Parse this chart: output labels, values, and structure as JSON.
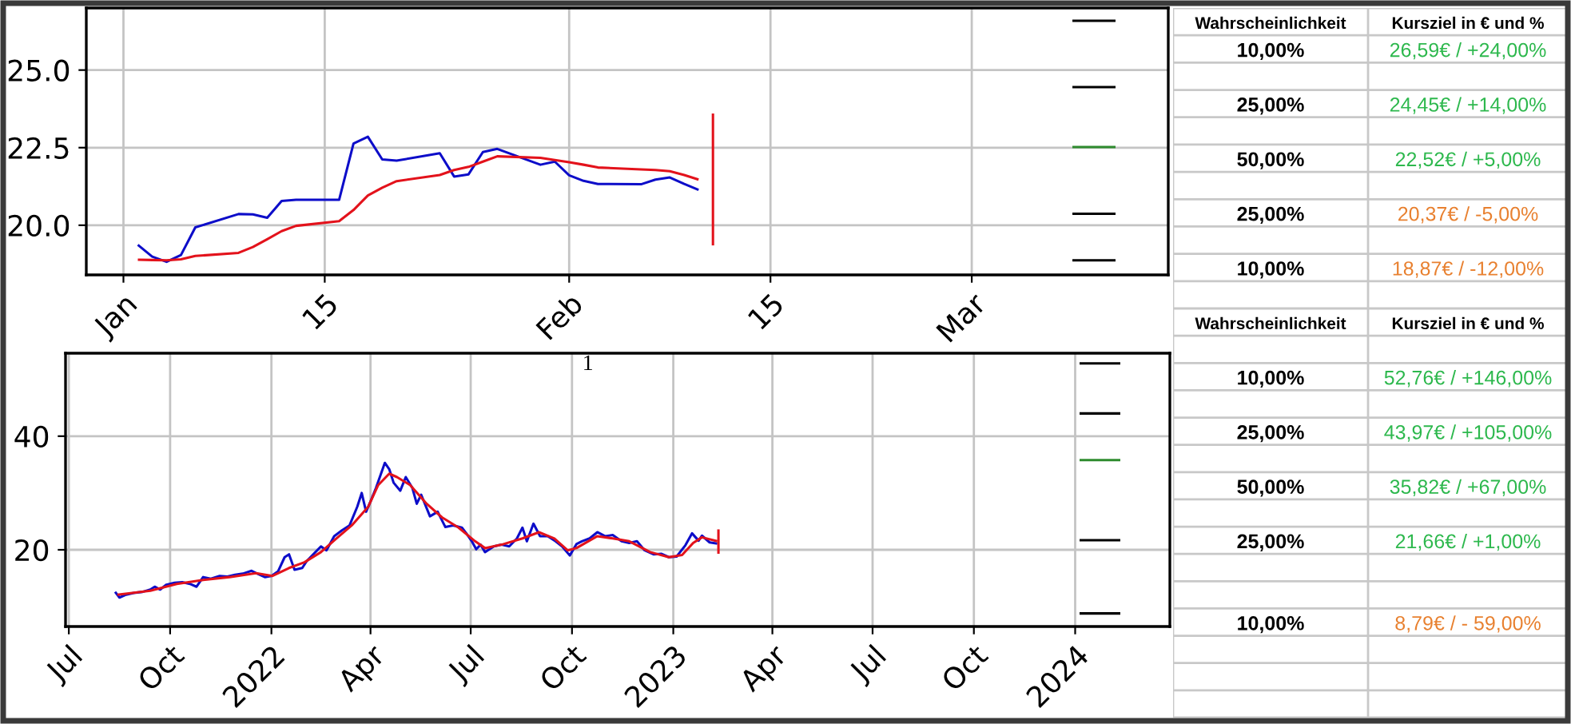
{
  "chart_data": [
    {
      "type": "line",
      "xlim": [
        "2022-12-29T10:00",
        "2023-03-14T16:00"
      ],
      "ylim": [
        18.4,
        27.0
      ],
      "xticks": [
        {
          "value": "2023-01-01",
          "label": "Jan"
        },
        {
          "value": "2023-01-15",
          "label": "15"
        },
        {
          "value": "2023-02-01",
          "label": "Feb"
        },
        {
          "value": "2023-02-15",
          "label": "15"
        },
        {
          "value": "2023-03-01",
          "label": "Mar"
        }
      ],
      "yticks": [
        {
          "value": 20,
          "label": "20.0"
        },
        {
          "value": 22.5,
          "label": "22.5"
        },
        {
          "value": 25,
          "label": "25.0"
        }
      ],
      "grid": true,
      "x": [
        "2023-01-02",
        "2023-01-03",
        "2023-01-04",
        "2023-01-05",
        "2023-01-06",
        "2023-01-09",
        "2023-01-10",
        "2023-01-11",
        "2023-01-12",
        "2023-01-13",
        "2023-01-16",
        "2023-01-17",
        "2023-01-18",
        "2023-01-19",
        "2023-01-20",
        "2023-01-23",
        "2023-01-24",
        "2023-01-25",
        "2023-01-26",
        "2023-01-27",
        "2023-01-30",
        "2023-01-31",
        "2023-02-01",
        "2023-02-02",
        "2023-02-03",
        "2023-02-06",
        "2023-02-07",
        "2023-02-08",
        "2023-02-09",
        "2023-02-10"
      ],
      "series": [
        {
          "color": "#0d0dc9",
          "values": [
            19.37,
            18.99,
            18.82,
            19.04,
            19.93,
            20.36,
            20.35,
            20.24,
            20.78,
            20.82,
            20.82,
            22.63,
            22.85,
            22.12,
            22.08,
            22.32,
            21.57,
            21.64,
            22.36,
            22.46,
            21.95,
            22.05,
            21.61,
            21.43,
            21.33,
            21.32,
            21.47,
            21.54,
            21.33,
            21.14
          ]
        },
        {
          "color": "#e3121b",
          "values": [
            18.89,
            18.88,
            18.87,
            18.9,
            19.01,
            19.11,
            19.3,
            19.55,
            19.81,
            19.98,
            20.13,
            20.49,
            20.96,
            21.21,
            21.42,
            21.62,
            21.78,
            21.88,
            22.05,
            22.22,
            22.17,
            22.1,
            22.03,
            21.95,
            21.86,
            21.8,
            21.78,
            21.74,
            21.62,
            21.47
          ]
        },
        {
          "color": "#e3121b",
          "x": [
            "2023-02-11",
            "2023-02-11"
          ],
          "values": [
            23.6,
            19.35
          ]
        },
        {
          "color": "#000000",
          "x": [
            "2023-03-08",
            "2023-03-11"
          ],
          "values": [
            26.59,
            26.59
          ]
        },
        {
          "color": "#000000",
          "x": [
            "2023-03-08",
            "2023-03-11"
          ],
          "values": [
            24.45,
            24.45
          ]
        },
        {
          "color": "#2e8b2e",
          "x": [
            "2023-03-08",
            "2023-03-11"
          ],
          "values": [
            22.52,
            22.52
          ]
        },
        {
          "color": "#000000",
          "x": [
            "2023-03-08",
            "2023-03-11"
          ],
          "values": [
            20.37,
            20.37
          ]
        },
        {
          "color": "#000000",
          "x": [
            "2023-03-08",
            "2023-03-11"
          ],
          "values": [
            18.87,
            18.87
          ]
        }
      ]
    },
    {
      "type": "line",
      "xlim": [
        "2021-06-28",
        "2024-03-27"
      ],
      "ylim": [
        6.5,
        54.6
      ],
      "xticks": [
        {
          "value": "2021-07-01",
          "label": "Jul"
        },
        {
          "value": "2021-10-01",
          "label": "Oct"
        },
        {
          "value": "2022-01-01",
          "label": "2022"
        },
        {
          "value": "2022-04-01",
          "label": "Apr"
        },
        {
          "value": "2022-07-01",
          "label": "Jul"
        },
        {
          "value": "2022-10-01",
          "label": "Oct"
        },
        {
          "value": "2023-01-01",
          "label": "2023"
        },
        {
          "value": "2023-04-01",
          "label": "Apr"
        },
        {
          "value": "2023-07-01",
          "label": "Jul"
        },
        {
          "value": "2023-10-01",
          "label": "Oct"
        },
        {
          "value": "2024-01-01",
          "label": "2024"
        }
      ],
      "yticks": [
        20,
        40
      ],
      "grid": true,
      "annotations": [
        "1"
      ],
      "series": [
        {
          "color": "#0d0dc9",
          "x": [
            "2021-08-12",
            "2021-08-16",
            "2021-08-22",
            "2021-08-29",
            "2021-09-06",
            "2021-09-13",
            "2021-09-17",
            "2021-09-22",
            "2021-09-27",
            "2021-10-05",
            "2021-10-12",
            "2021-10-19",
            "2021-10-25",
            "2021-10-31",
            "2021-11-07",
            "2021-11-15",
            "2021-11-22",
            "2021-11-29",
            "2021-12-06",
            "2021-12-14",
            "2021-12-18",
            "2021-12-26",
            "2022-01-01",
            "2022-01-07",
            "2022-01-13",
            "2022-01-17",
            "2022-01-22",
            "2022-01-29",
            "2022-02-02",
            "2022-02-10",
            "2022-02-15",
            "2022-02-20",
            "2022-02-27",
            "2022-03-06",
            "2022-03-13",
            "2022-03-20",
            "2022-03-24",
            "2022-03-28",
            "2022-04-01",
            "2022-04-06",
            "2022-04-14",
            "2022-04-18",
            "2022-04-22",
            "2022-04-28",
            "2022-05-03",
            "2022-05-09",
            "2022-05-13",
            "2022-05-17",
            "2022-05-25",
            "2022-06-01",
            "2022-06-08",
            "2022-06-15",
            "2022-06-23",
            "2022-06-27",
            "2022-07-02",
            "2022-07-06",
            "2022-07-10",
            "2022-07-14",
            "2022-07-22",
            "2022-07-29",
            "2022-08-05",
            "2022-08-12",
            "2022-08-17",
            "2022-08-21",
            "2022-08-27",
            "2022-09-02",
            "2022-09-09",
            "2022-09-16",
            "2022-09-22",
            "2022-09-29",
            "2022-10-05",
            "2022-10-10",
            "2022-10-17",
            "2022-10-24",
            "2022-10-31",
            "2022-11-07",
            "2022-11-15",
            "2022-11-22",
            "2022-11-29",
            "2022-12-06",
            "2022-12-14",
            "2022-12-21",
            "2022-12-28",
            "2023-01-04",
            "2023-01-12",
            "2023-01-18",
            "2023-01-24",
            "2023-01-27",
            "2023-02-03",
            "2023-02-10"
          ],
          "values": [
            12.6,
            11.6,
            12.1,
            12.4,
            12.6,
            13.0,
            13.5,
            13.0,
            13.8,
            14.2,
            14.3,
            14.0,
            13.5,
            15.2,
            14.9,
            15.4,
            15.3,
            15.6,
            15.8,
            16.3,
            15.9,
            15.2,
            15.4,
            16.2,
            18.7,
            19.2,
            16.5,
            16.8,
            18.0,
            19.6,
            20.6,
            19.9,
            22.4,
            23.4,
            24.3,
            27.6,
            30.0,
            26.7,
            28.5,
            30.9,
            35.3,
            34.2,
            31.8,
            30.4,
            32.8,
            30.9,
            28.1,
            29.7,
            25.9,
            26.7,
            24.0,
            24.3,
            23.9,
            22.9,
            21.5,
            20.1,
            20.9,
            19.6,
            20.6,
            20.9,
            20.6,
            22.0,
            23.9,
            21.5,
            24.6,
            22.4,
            22.4,
            21.5,
            20.6,
            19.0,
            21.0,
            21.5,
            22.0,
            23.1,
            22.4,
            22.6,
            21.5,
            21.2,
            21.5,
            19.9,
            19.2,
            19.3,
            18.7,
            18.8,
            20.8,
            22.9,
            21.6,
            22.5,
            21.3,
            21.1
          ]
        },
        {
          "color": "#e3121b",
          "x": [
            "2021-08-14",
            "2021-09-13",
            "2021-10-07",
            "2021-10-31",
            "2021-11-24",
            "2021-12-18",
            "2022-01-02",
            "2022-01-17",
            "2022-01-31",
            "2022-02-15",
            "2022-03-01",
            "2022-03-15",
            "2022-03-30",
            "2022-04-08",
            "2022-04-18",
            "2022-04-25",
            "2022-05-07",
            "2022-05-22",
            "2022-06-05",
            "2022-06-20",
            "2022-07-05",
            "2022-07-14",
            "2022-07-29",
            "2022-08-17",
            "2022-09-01",
            "2022-09-15",
            "2022-09-27",
            "2022-10-05",
            "2022-10-24",
            "2022-11-07",
            "2022-11-22",
            "2022-12-11",
            "2022-12-28",
            "2023-01-09",
            "2023-01-19",
            "2023-01-27",
            "2023-02-10"
          ],
          "values": [
            12.1,
            12.8,
            14.0,
            14.7,
            15.2,
            15.9,
            15.4,
            16.8,
            17.8,
            19.6,
            22.0,
            24.3,
            27.6,
            31.4,
            33.4,
            32.8,
            31.4,
            28.1,
            25.7,
            23.9,
            21.5,
            20.3,
            20.9,
            22.0,
            23.1,
            22.0,
            19.9,
            20.3,
            22.4,
            22.0,
            21.5,
            19.6,
            18.7,
            19.1,
            21.2,
            22.2,
            21.5
          ]
        },
        {
          "color": "#e3121b",
          "x": [
            "2023-02-11",
            "2023-02-11"
          ],
          "values": [
            23.6,
            19.3
          ]
        },
        {
          "color": "#000000",
          "x": [
            "2024-01-05",
            "2024-02-11"
          ],
          "values": [
            52.8,
            52.8
          ]
        },
        {
          "color": "#000000",
          "x": [
            "2024-01-05",
            "2024-02-11"
          ],
          "values": [
            44.0,
            44.0
          ]
        },
        {
          "color": "#2e8b2e",
          "x": [
            "2024-01-05",
            "2024-02-11"
          ],
          "values": [
            35.8,
            35.8
          ]
        },
        {
          "color": "#000000",
          "x": [
            "2024-01-05",
            "2024-02-11"
          ],
          "values": [
            21.7,
            21.7
          ]
        },
        {
          "color": "#000000",
          "x": [
            "2024-01-05",
            "2024-02-11"
          ],
          "values": [
            8.8,
            8.8
          ]
        }
      ]
    },
    {
      "type": "other",
      "annotations": [
        "Wahrscheinlichkeit",
        "Kursziel in € und %"
      ],
      "categories": [
        "10,00%",
        "25,00%",
        "50,00%",
        "25,00%",
        "10,00%"
      ],
      "value_labels": [
        "26,59€ / +24,00%",
        "24,45€ / +14,00%",
        "22,52€ / +5,00%",
        "20,37€ / -5,00%",
        "18,87€ / -12,00%"
      ],
      "colors": [
        "#2db84d",
        "#2db84d",
        "#2db84d",
        "#e8802f",
        "#e8802f"
      ]
    },
    {
      "type": "other",
      "annotations": [
        "Wahrscheinlichkeit",
        "Kursziel in € und %"
      ],
      "categories": [
        "10,00%",
        "25,00%",
        "50,00%",
        "25,00%",
        "10,00%"
      ],
      "value_labels": [
        "52,76€ / +146,00%",
        "43,97€ / +105,00%",
        "35,82€ / +67,00%",
        "21,66€ / +1,00%",
        "8,79€ / - 59,00%"
      ],
      "colors": [
        "#2db84d",
        "#2db84d",
        "#2db84d",
        "#2db84d",
        "#e8802f"
      ]
    }
  ]
}
